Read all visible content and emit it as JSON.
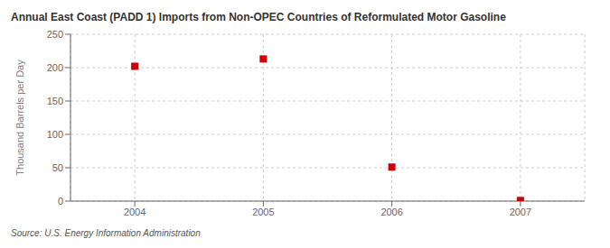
{
  "chart_data": {
    "type": "scatter",
    "title": "Annual East Coast (PADD 1) Imports from Non-OPEC Countries of Reformulated Motor Gasoline",
    "ylabel": "Thousand Barrels per Day",
    "annotations": [
      "Source: U.S. Energy Information Administration"
    ],
    "x": [
      2004,
      2005,
      2006,
      2007
    ],
    "values": [
      202,
      213,
      51,
      1
    ],
    "color": "#cc0000",
    "marker": "square",
    "xlim": [
      2003.5,
      2007.5
    ],
    "xticks": [
      2004,
      2005,
      2006,
      2007
    ],
    "ylim": [
      0,
      250
    ],
    "yticks": [
      0,
      50,
      100,
      150,
      200,
      250
    ],
    "grid": true
  }
}
